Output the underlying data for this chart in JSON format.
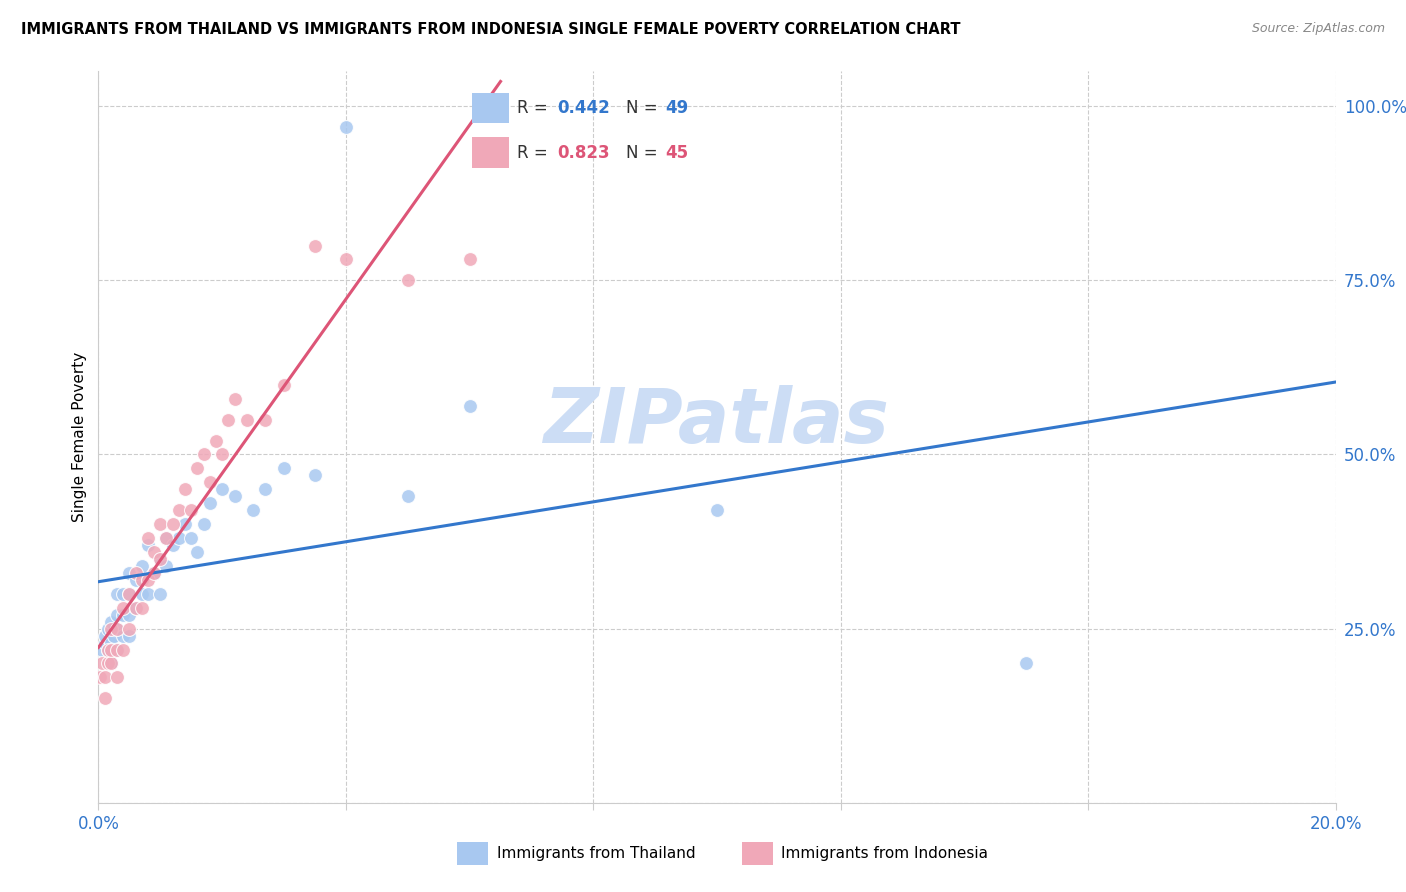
{
  "title": "IMMIGRANTS FROM THAILAND VS IMMIGRANTS FROM INDONESIA SINGLE FEMALE POVERTY CORRELATION CHART",
  "source": "Source: ZipAtlas.com",
  "ylabel": "Single Female Poverty",
  "ytick_vals": [
    0.0,
    0.25,
    0.5,
    0.75,
    1.0
  ],
  "ytick_labels": [
    "",
    "25.0%",
    "50.0%",
    "75.0%",
    "100.0%"
  ],
  "xlim": [
    0.0,
    0.2
  ],
  "ylim": [
    0.0,
    1.05
  ],
  "legend_labels": [
    "Immigrants from Thailand",
    "Immigrants from Indonesia"
  ],
  "R_thailand": 0.442,
  "N_thailand": 49,
  "R_indonesia": 0.823,
  "N_indonesia": 45,
  "color_thailand": "#a8c8f0",
  "color_indonesia": "#f0a8b8",
  "line_color_thailand": "#3377cc",
  "line_color_indonesia": "#dd5577",
  "watermark": "ZIPatlas",
  "watermark_color": "#ccddf5",
  "thailand_x": [
    0.0005,
    0.001,
    0.001,
    0.0015,
    0.0015,
    0.002,
    0.002,
    0.002,
    0.0025,
    0.003,
    0.003,
    0.003,
    0.003,
    0.004,
    0.004,
    0.004,
    0.005,
    0.005,
    0.005,
    0.005,
    0.006,
    0.006,
    0.007,
    0.007,
    0.008,
    0.008,
    0.009,
    0.01,
    0.01,
    0.011,
    0.011,
    0.012,
    0.013,
    0.014,
    0.015,
    0.016,
    0.017,
    0.018,
    0.02,
    0.022,
    0.025,
    0.027,
    0.03,
    0.035,
    0.04,
    0.05,
    0.06,
    0.1,
    0.15
  ],
  "thailand_y": [
    0.22,
    0.23,
    0.24,
    0.22,
    0.25,
    0.2,
    0.23,
    0.26,
    0.24,
    0.22,
    0.25,
    0.27,
    0.3,
    0.24,
    0.27,
    0.3,
    0.24,
    0.27,
    0.3,
    0.33,
    0.28,
    0.32,
    0.3,
    0.34,
    0.3,
    0.37,
    0.33,
    0.3,
    0.35,
    0.34,
    0.38,
    0.37,
    0.38,
    0.4,
    0.38,
    0.36,
    0.4,
    0.43,
    0.45,
    0.44,
    0.42,
    0.45,
    0.48,
    0.47,
    0.97,
    0.44,
    0.57,
    0.42,
    0.2
  ],
  "indonesia_x": [
    0.0003,
    0.0005,
    0.001,
    0.001,
    0.0015,
    0.0015,
    0.002,
    0.002,
    0.002,
    0.003,
    0.003,
    0.003,
    0.004,
    0.004,
    0.005,
    0.005,
    0.006,
    0.006,
    0.007,
    0.007,
    0.008,
    0.008,
    0.009,
    0.009,
    0.01,
    0.01,
    0.011,
    0.012,
    0.013,
    0.014,
    0.015,
    0.016,
    0.017,
    0.018,
    0.019,
    0.02,
    0.021,
    0.022,
    0.024,
    0.027,
    0.03,
    0.035,
    0.04,
    0.05,
    0.06
  ],
  "indonesia_y": [
    0.18,
    0.2,
    0.15,
    0.18,
    0.2,
    0.22,
    0.2,
    0.22,
    0.25,
    0.18,
    0.22,
    0.25,
    0.22,
    0.28,
    0.25,
    0.3,
    0.28,
    0.33,
    0.28,
    0.32,
    0.32,
    0.38,
    0.33,
    0.36,
    0.35,
    0.4,
    0.38,
    0.4,
    0.42,
    0.45,
    0.42,
    0.48,
    0.5,
    0.46,
    0.52,
    0.5,
    0.55,
    0.58,
    0.55,
    0.55,
    0.6,
    0.8,
    0.78,
    0.75,
    0.78
  ]
}
